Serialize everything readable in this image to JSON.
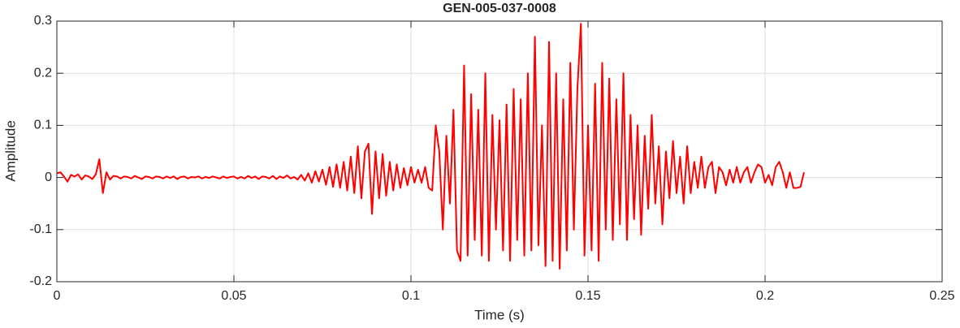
{
  "chart_data": {
    "type": "line",
    "title": "GEN-005-037-0008",
    "x_label": "Time (s)",
    "y_label": "Amplitude",
    "color": "#ff0000",
    "grid": true,
    "xlim": [
      0,
      0.25
    ],
    "xticks": [
      0,
      0.05,
      0.1,
      0.15,
      0.2,
      0.25
    ],
    "ylim": [
      -0.2,
      0.3
    ],
    "yticks": [
      -0.2,
      -0.1,
      0,
      0.1,
      0.2,
      0.3
    ],
    "x": [
      0,
      0.001,
      0.002,
      0.003,
      0.004,
      0.005,
      0.006,
      0.007,
      0.008,
      0.009,
      0.01,
      0.011,
      0.012,
      0.013,
      0.014,
      0.015,
      0.016,
      0.017,
      0.018,
      0.019,
      0.02,
      0.021,
      0.022,
      0.023,
      0.024,
      0.025,
      0.026,
      0.027,
      0.028,
      0.029,
      0.03,
      0.031,
      0.032,
      0.033,
      0.034,
      0.035,
      0.036,
      0.037,
      0.038,
      0.039,
      0.04,
      0.041,
      0.042,
      0.043,
      0.044,
      0.045,
      0.046,
      0.047,
      0.048,
      0.049,
      0.05,
      0.051,
      0.052,
      0.053,
      0.054,
      0.055,
      0.056,
      0.057,
      0.058,
      0.059,
      0.06,
      0.061,
      0.062,
      0.063,
      0.064,
      0.065,
      0.066,
      0.067,
      0.068,
      0.069,
      0.07,
      0.071,
      0.072,
      0.073,
      0.074,
      0.075,
      0.076,
      0.077,
      0.078,
      0.079,
      0.08,
      0.081,
      0.082,
      0.083,
      0.084,
      0.085,
      0.086,
      0.087,
      0.088,
      0.089,
      0.09,
      0.091,
      0.092,
      0.093,
      0.094,
      0.095,
      0.096,
      0.097,
      0.098,
      0.099,
      0.1,
      0.101,
      0.102,
      0.103,
      0.104,
      0.105,
      0.106,
      0.107,
      0.108,
      0.109,
      0.11,
      0.111,
      0.112,
      0.113,
      0.114,
      0.115,
      0.116,
      0.117,
      0.118,
      0.119,
      0.12,
      0.121,
      0.122,
      0.123,
      0.124,
      0.125,
      0.126,
      0.127,
      0.128,
      0.129,
      0.13,
      0.131,
      0.132,
      0.133,
      0.134,
      0.135,
      0.136,
      0.137,
      0.138,
      0.139,
      0.14,
      0.141,
      0.142,
      0.143,
      0.144,
      0.145,
      0.146,
      0.147,
      0.148,
      0.149,
      0.15,
      0.151,
      0.152,
      0.153,
      0.154,
      0.155,
      0.156,
      0.157,
      0.158,
      0.159,
      0.16,
      0.161,
      0.162,
      0.163,
      0.164,
      0.165,
      0.166,
      0.167,
      0.168,
      0.169,
      0.17,
      0.171,
      0.172,
      0.173,
      0.174,
      0.175,
      0.176,
      0.177,
      0.178,
      0.179,
      0.18,
      0.181,
      0.182,
      0.183,
      0.184,
      0.185,
      0.186,
      0.187,
      0.188,
      0.189,
      0.19,
      0.191,
      0.192,
      0.193,
      0.194,
      0.195,
      0.196,
      0.197,
      0.198,
      0.199,
      0.2,
      0.201,
      0.202,
      0.203,
      0.204,
      0.205,
      0.206,
      0.207,
      0.208,
      0.209,
      0.21,
      0.211
    ],
    "values": [
      0.008,
      0.01,
      0.002,
      -0.008,
      0.005,
      0.002,
      0.006,
      -0.004,
      0.004,
      0.002,
      -0.003,
      0.006,
      0.035,
      -0.03,
      0.01,
      -0.004,
      0.003,
      0.002,
      -0.002,
      0.002,
      0.001,
      -0.002,
      0.003,
      0,
      -0.003,
      0.002,
      0.001,
      -0.002,
      0.002,
      0.001,
      -0.002,
      0.002,
      -0.001,
      0.002,
      -0.003,
      0.001,
      0.002,
      -0.002,
      0.001,
      0,
      0.002,
      -0.002,
      0.001,
      -0.001,
      0.002,
      0,
      -0.002,
      0.002,
      -0.001,
      0.001,
      0.002,
      -0.002,
      0.001,
      -0.002,
      0.003,
      -0.001,
      0.002,
      -0.003,
      0.002,
      0.001,
      -0.002,
      0.003,
      -0.003,
      0.002,
      -0.001,
      0.004,
      -0.002,
      0.001,
      -0.004,
      0.005,
      -0.006,
      0.008,
      -0.01,
      0.012,
      -0.008,
      0.015,
      -0.014,
      0.02,
      -0.018,
      0.025,
      -0.02,
      0.03,
      -0.025,
      0.04,
      -0.03,
      0.06,
      -0.04,
      0.05,
      0.065,
      -0.07,
      0.05,
      -0.04,
      0.045,
      -0.035,
      0.03,
      -0.025,
      0.025,
      -0.02,
      0.018,
      -0.015,
      0.02,
      -0.01,
      0.015,
      -0.01,
      0.02,
      -0.02,
      -0.025,
      0.1,
      0.05,
      -0.1,
      0.08,
      -0.05,
      0.13,
      -0.14,
      -0.16,
      0.215,
      -0.15,
      0.16,
      -0.12,
      0.13,
      -0.15,
      0.2,
      -0.16,
      0.12,
      -0.1,
      0.11,
      -0.14,
      0.14,
      -0.16,
      0.17,
      -0.12,
      0.15,
      -0.15,
      0.2,
      -0.14,
      0.27,
      -0.13,
      0.1,
      -0.17,
      0.26,
      -0.16,
      0.2,
      -0.175,
      0.15,
      -0.14,
      0.22,
      -0.1,
      0.17,
      0.295,
      -0.15,
      0.1,
      -0.14,
      0.18,
      -0.16,
      0.22,
      -0.1,
      0.19,
      -0.12,
      0.15,
      -0.09,
      0.2,
      -0.12,
      0.12,
      -0.08,
      0.1,
      -0.11,
      0.08,
      -0.06,
      0.12,
      -0.05,
      0.06,
      -0.09,
      0.05,
      -0.04,
      0.07,
      -0.03,
      0.04,
      -0.05,
      0.06,
      -0.03,
      0.03,
      -0.02,
      0.04,
      -0.02,
      0.02,
      0.03,
      -0.03,
      0.02,
      0.01,
      -0.015,
      0.015,
      -0.01,
      0.02,
      -0.01,
      0.01,
      0.02,
      -0.01,
      0.01,
      0.025,
      0.02,
      -0.01,
      0.005,
      -0.015,
      0.02,
      0.03,
      0.01,
      -0.02,
      0.01,
      -0.02,
      -0.02,
      -0.018,
      0.01
    ]
  }
}
